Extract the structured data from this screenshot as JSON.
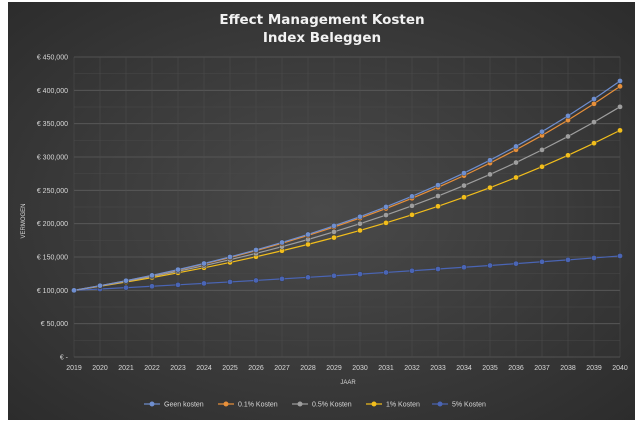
{
  "chart_data": {
    "type": "line",
    "title": [
      "Effect Management  Kosten",
      "Index Beleggen"
    ],
    "xlabel": "JAAR",
    "ylabel": "VERMOGEN",
    "ylim": [
      0,
      450000
    ],
    "yticks": [
      {
        "value": 0,
        "label": "€ -"
      },
      {
        "value": 50000,
        "label": "€ 50,000"
      },
      {
        "value": 100000,
        "label": "€ 100,000"
      },
      {
        "value": 150000,
        "label": "€ 150,000"
      },
      {
        "value": 200000,
        "label": "€ 200,000"
      },
      {
        "value": 250000,
        "label": "€ 250,000"
      },
      {
        "value": 300000,
        "label": "€ 300,000"
      },
      {
        "value": 350000,
        "label": "€ 350,000"
      },
      {
        "value": 400000,
        "label": "€ 400,000"
      },
      {
        "value": 450000,
        "label": "€ 450,000"
      }
    ],
    "x": [
      "2019",
      "2020",
      "2021",
      "2022",
      "2023",
      "2024",
      "2025",
      "2026",
      "2027",
      "2028",
      "2029",
      "2030",
      "2031",
      "2032",
      "2033",
      "2034",
      "2035",
      "2036",
      "2037",
      "2038",
      "2039",
      "2040"
    ],
    "grid": true,
    "legend_position": "bottom",
    "series": [
      {
        "name": "Geen kosten",
        "color": "#6f8fd0",
        "values": [
          100000,
          107000,
          114490,
          122504,
          131080,
          140255,
          150073,
          160578,
          171819,
          183846,
          196715,
          210485,
          225219,
          240985,
          257853,
          275903,
          295216,
          315882,
          337993,
          361653,
          386968,
          414056
        ]
      },
      {
        "name": "0.1% Kosten",
        "color": "#e8903a",
        "values": [
          100000,
          106900,
          114276,
          122161,
          130590,
          139601,
          149233,
          159530,
          170538,
          182305,
          194884,
          208331,
          222706,
          238073,
          254500,
          272060,
          290832,
          310900,
          332350,
          355283,
          379798,
          406003
        ]
      },
      {
        "name": "0.5% Kosten",
        "color": "#9e9e9e",
        "values": [
          100000,
          106500,
          113423,
          120795,
          128646,
          137008,
          145914,
          155398,
          165499,
          176256,
          187713,
          199914,
          212908,
          226748,
          241486,
          257183,
          273900,
          291703,
          310664,
          330857,
          352363,
          375266
        ]
      },
      {
        "name": "1% Kosten",
        "color": "#f2be1c",
        "values": [
          100000,
          106000,
          112360,
          119102,
          126248,
          133823,
          141852,
          150363,
          159385,
          168948,
          179085,
          189830,
          201220,
          213293,
          226090,
          239656,
          254035,
          269277,
          285434,
          302560,
          320714,
          339956
        ]
      },
      {
        "name": "5% Kosten",
        "color": "#4a65b5",
        "values": [
          100000,
          102000,
          104040,
          106121,
          108243,
          110408,
          112616,
          114869,
          117166,
          119509,
          121899,
          124337,
          126824,
          129361,
          131948,
          134587,
          137279,
          140024,
          142825,
          145681,
          148595,
          151567
        ]
      }
    ]
  }
}
